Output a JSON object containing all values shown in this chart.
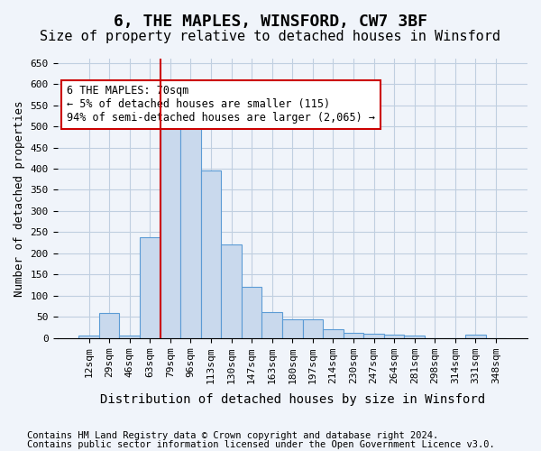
{
  "title": "6, THE MAPLES, WINSFORD, CW7 3BF",
  "subtitle": "Size of property relative to detached houses in Winsford",
  "xlabel": "Distribution of detached houses by size in Winsford",
  "ylabel": "Number of detached properties",
  "footnote1": "Contains HM Land Registry data © Crown copyright and database right 2024.",
  "footnote2": "Contains public sector information licensed under the Open Government Licence v3.0.",
  "bar_labels": [
    "12sqm",
    "29sqm",
    "46sqm",
    "63sqm",
    "79sqm",
    "96sqm",
    "113sqm",
    "130sqm",
    "147sqm",
    "163sqm",
    "180sqm",
    "197sqm",
    "214sqm",
    "230sqm",
    "247sqm",
    "264sqm",
    "281sqm",
    "298sqm",
    "314sqm",
    "331sqm",
    "348sqm"
  ],
  "bar_values": [
    5,
    60,
    5,
    237,
    507,
    502,
    395,
    222,
    120,
    62,
    45,
    45,
    20,
    12,
    10,
    7,
    5,
    0,
    0,
    7,
    0
  ],
  "bar_color": "#c9d9ed",
  "bar_edge_color": "#5b9bd5",
  "grid_color": "#c0cfe0",
  "annotation_text": "6 THE MAPLES: 70sqm\n← 5% of detached houses are smaller (115)\n94% of semi-detached houses are larger (2,065) →",
  "annotation_box_color": "#ffffff",
  "annotation_border_color": "#cc0000",
  "vline_color": "#cc0000",
  "vline_x_idx": 4,
  "ylim": [
    0,
    660
  ],
  "yticks": [
    0,
    50,
    100,
    150,
    200,
    250,
    300,
    350,
    400,
    450,
    500,
    550,
    600,
    650
  ],
  "title_fontsize": 13,
  "subtitle_fontsize": 11,
  "xlabel_fontsize": 10,
  "ylabel_fontsize": 9,
  "tick_fontsize": 8,
  "annotation_fontsize": 8.5,
  "footnote_fontsize": 7.5,
  "background_color": "#f0f4fa"
}
